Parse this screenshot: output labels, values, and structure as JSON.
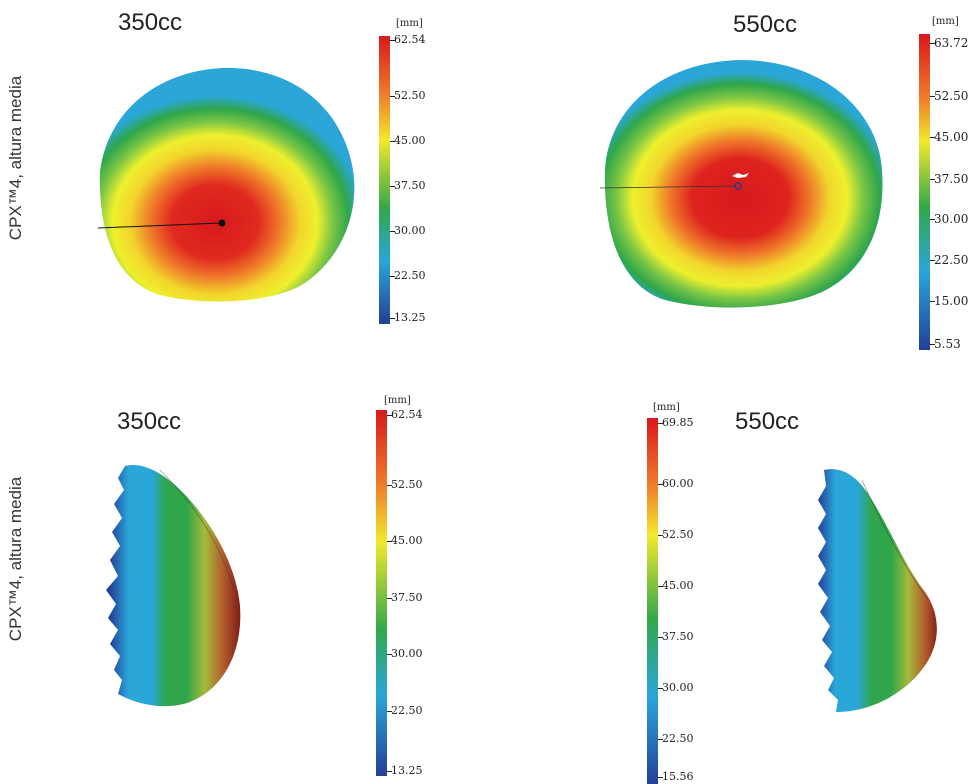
{
  "rows": [
    {
      "label": "CPX™4, altura media"
    },
    {
      "label": "CPX™4, altura media"
    }
  ],
  "panels": [
    {
      "title": "350cc",
      "view": "frontal",
      "scale": {
        "unit": "[mm]",
        "ticks": [
          "62.54",
          "52.50",
          "45.00",
          "37.50",
          "30.00",
          "22.50",
          "13.25"
        ]
      }
    },
    {
      "title": "550cc",
      "view": "frontal",
      "scale": {
        "unit": "[mm]",
        "ticks": [
          "63.72",
          "52.50",
          "45.00",
          "37.50",
          "30.00",
          "22.50",
          "15.00",
          "5.53"
        ]
      }
    },
    {
      "title": "350cc",
      "view": "lateral",
      "scale": {
        "unit": "[mm]",
        "ticks": [
          "62.54",
          "52.50",
          "45.00",
          "37.50",
          "30.00",
          "22.50",
          "13.25"
        ]
      }
    },
    {
      "title": "550cc",
      "view": "lateral",
      "scale": {
        "unit": "[mm]",
        "ticks": [
          "69.85",
          "60.00",
          "52.50",
          "45.00",
          "37.50",
          "30.00",
          "22.50",
          "15.56"
        ]
      }
    }
  ],
  "colors": {
    "red": "#d7191c",
    "orange": "#f0862a",
    "yellow": "#f2e92c",
    "green": "#31a84a",
    "cyan": "#2aa6d9",
    "blue": "#243f96"
  }
}
